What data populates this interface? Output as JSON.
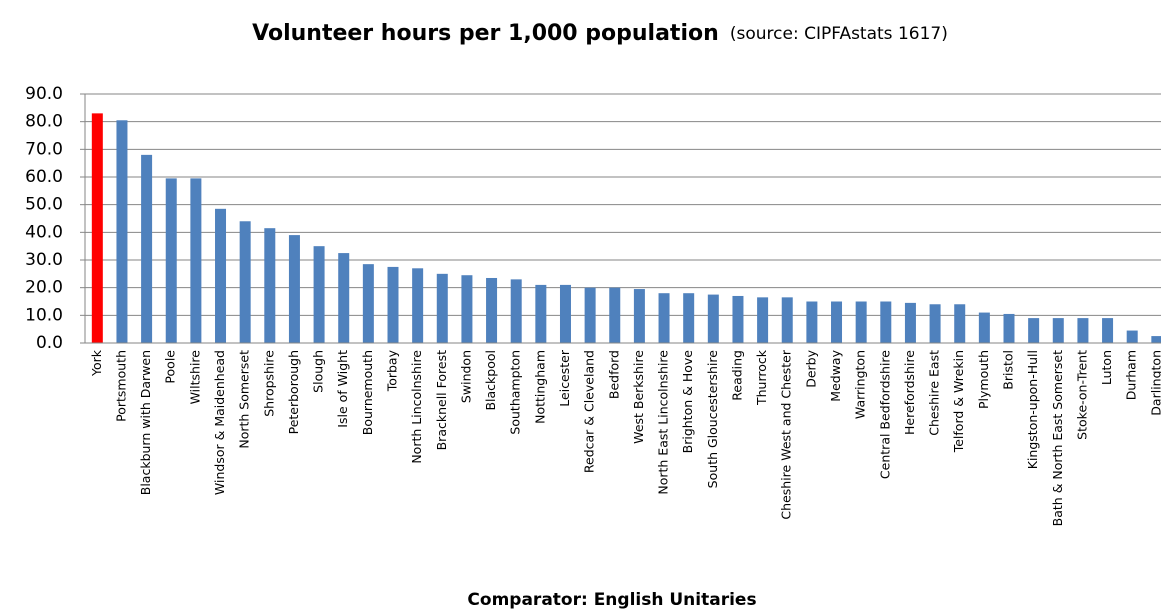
{
  "chart_data": {
    "type": "bar",
    "title": "Volunteer hours per 1,000 population",
    "source": "(source: CIPFAstats 1617)",
    "x_label": "Comparator: English Unitaries",
    "categories": [
      "York",
      "Portsmouth",
      "Blackburn with Darwen",
      "Poole",
      "Wiltshire",
      "Windsor & Maidenhead",
      "North Somerset",
      "Shropshire",
      "Peterborough",
      "Slough",
      "Isle of Wight",
      "Bournemouth",
      "Torbay",
      "North Lincolnshire",
      "Bracknell Forest",
      "Swindon",
      "Blackpool",
      "Southampton",
      "Nottingham",
      "Leicester",
      "Redcar & Cleveland",
      "Bedford",
      "West Berkshire",
      "North East Lincolnshire",
      "Brighton & Hove",
      "South Gloucestershire",
      "Reading",
      "Thurrock",
      "Cheshire West and Chester",
      "Derby",
      "Medway",
      "Warrington",
      "Central Bedfordshire",
      "Herefordshire",
      "Cheshire East",
      "Telford & Wrekin",
      "Plymouth",
      "Bristol",
      "Kingston-upon-Hull",
      "Bath & North East Somerset",
      "Stoke-on-Trent",
      "Luton",
      "Durham",
      "Darlington"
    ],
    "values": [
      83,
      80.5,
      68,
      59.5,
      59.5,
      48.5,
      44,
      41.5,
      39,
      35,
      32.5,
      28.5,
      27.5,
      27,
      25,
      24.5,
      23.5,
      23,
      21,
      21,
      20,
      20,
      19.5,
      18,
      18,
      17.5,
      17,
      16.5,
      16.5,
      15,
      15,
      15,
      15,
      14.5,
      14,
      14,
      11,
      10.5,
      9,
      9,
      9,
      9,
      4.5,
      2.5
    ],
    "colors": [
      "#ff0000",
      "#4f81bd",
      "#4f81bd",
      "#4f81bd",
      "#4f81bd",
      "#4f81bd",
      "#4f81bd",
      "#4f81bd",
      "#4f81bd",
      "#4f81bd",
      "#4f81bd",
      "#4f81bd",
      "#4f81bd",
      "#4f81bd",
      "#4f81bd",
      "#4f81bd",
      "#4f81bd",
      "#4f81bd",
      "#4f81bd",
      "#4f81bd",
      "#4f81bd",
      "#4f81bd",
      "#4f81bd",
      "#4f81bd",
      "#4f81bd",
      "#4f81bd",
      "#4f81bd",
      "#4f81bd",
      "#4f81bd",
      "#4f81bd",
      "#4f81bd",
      "#4f81bd",
      "#4f81bd",
      "#4f81bd",
      "#4f81bd",
      "#4f81bd",
      "#4f81bd",
      "#4f81bd",
      "#4f81bd",
      "#4f81bd",
      "#4f81bd",
      "#4f81bd",
      "#4f81bd",
      "#4f81bd"
    ],
    "ylim": [
      0,
      90
    ],
    "yticks": [
      {
        "value": 0,
        "label": "0.0"
      },
      {
        "value": 10,
        "label": "10.0"
      },
      {
        "value": 20,
        "label": "20.0"
      },
      {
        "value": 30,
        "label": "30.0"
      },
      {
        "value": 40,
        "label": "40.0"
      },
      {
        "value": 50,
        "label": "50.0"
      },
      {
        "value": 60,
        "label": "60.0"
      },
      {
        "value": 70,
        "label": "70.0"
      },
      {
        "value": 80,
        "label": "80.0"
      },
      {
        "value": 90,
        "label": "90.0"
      }
    ],
    "grid": true
  }
}
